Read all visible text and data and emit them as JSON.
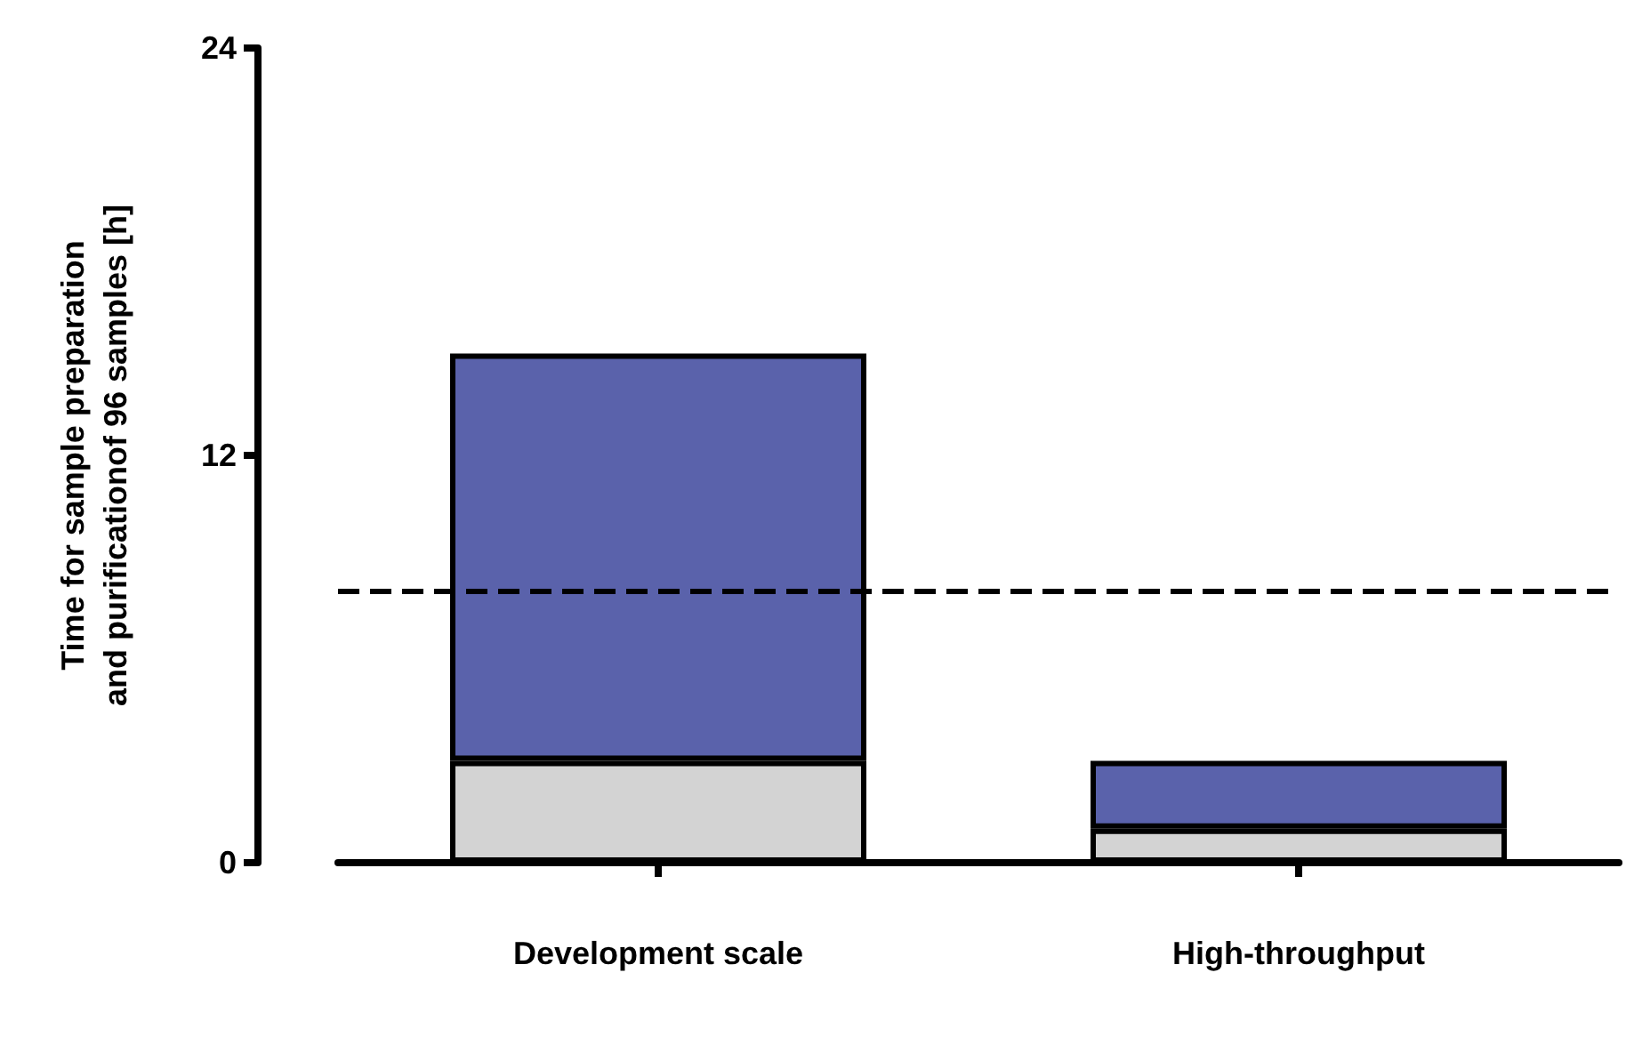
{
  "chart_data": {
    "type": "bar",
    "stacked": true,
    "ylabel": "Time for sample preparation\nand purificationof 96 samples [h]",
    "categories": [
      "Development scale",
      "High-throughput"
    ],
    "series": [
      {
        "color": "#d3d3d3",
        "values": [
          3,
          1
        ]
      },
      {
        "color": "#5a62ab",
        "values": [
          12,
          2
        ]
      }
    ],
    "ylim": [
      0,
      24
    ],
    "yticks": [
      0,
      12,
      24
    ],
    "grid": false,
    "ref_lines": [
      {
        "axis": "y",
        "value": 8,
        "color": "#000000",
        "line_style": "dashed"
      }
    ]
  }
}
